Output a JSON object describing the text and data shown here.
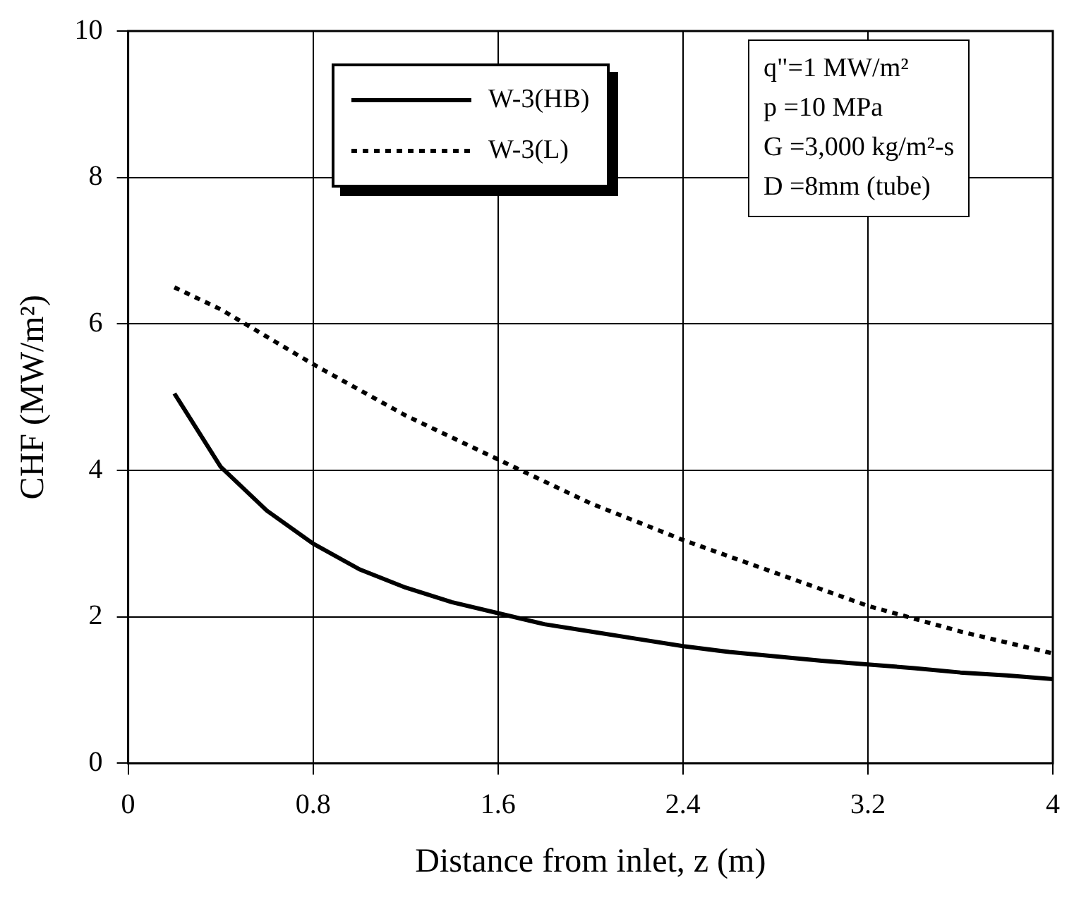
{
  "chart_data": {
    "type": "line",
    "xlabel": "Distance from inlet, z (m)",
    "ylabel": "CHF (MW/m²)",
    "xlim": [
      0,
      4
    ],
    "xticks": [
      0,
      0.8,
      1.6,
      2.4,
      3.2,
      4
    ],
    "ylim": [
      0,
      10
    ],
    "yticks": [
      0,
      2,
      4,
      6,
      8,
      10
    ],
    "grid": true,
    "legend": "top",
    "marker": "none",
    "annotations": [
      "q\"=1 MW/m²",
      "p =10 MPa",
      "G =3,000 kg/m²-s",
      "D =8mm (tube)"
    ],
    "series": [
      {
        "name": "W-3(HB)",
        "color": "#000000",
        "line_style": "solid",
        "x": [
          0.2,
          0.4,
          0.6,
          0.8,
          1.0,
          1.2,
          1.4,
          1.6,
          1.8,
          2.0,
          2.2,
          2.4,
          2.6,
          2.8,
          3.0,
          3.2,
          3.4,
          3.6,
          3.8,
          4.0
        ],
        "values": [
          5.05,
          4.05,
          3.45,
          3.0,
          2.65,
          2.4,
          2.2,
          2.05,
          1.9,
          1.8,
          1.7,
          1.6,
          1.52,
          1.46,
          1.4,
          1.35,
          1.3,
          1.24,
          1.2,
          1.15
        ]
      },
      {
        "name": "W-3(L)",
        "color": "#000000",
        "line_style": "dotted",
        "x": [
          0.2,
          0.4,
          0.8,
          1.2,
          1.6,
          2.0,
          2.4,
          2.8,
          3.2,
          3.6,
          4.0
        ],
        "values": [
          6.5,
          6.2,
          5.45,
          4.75,
          4.15,
          3.55,
          3.05,
          2.6,
          2.15,
          1.8,
          1.5
        ]
      }
    ]
  }
}
